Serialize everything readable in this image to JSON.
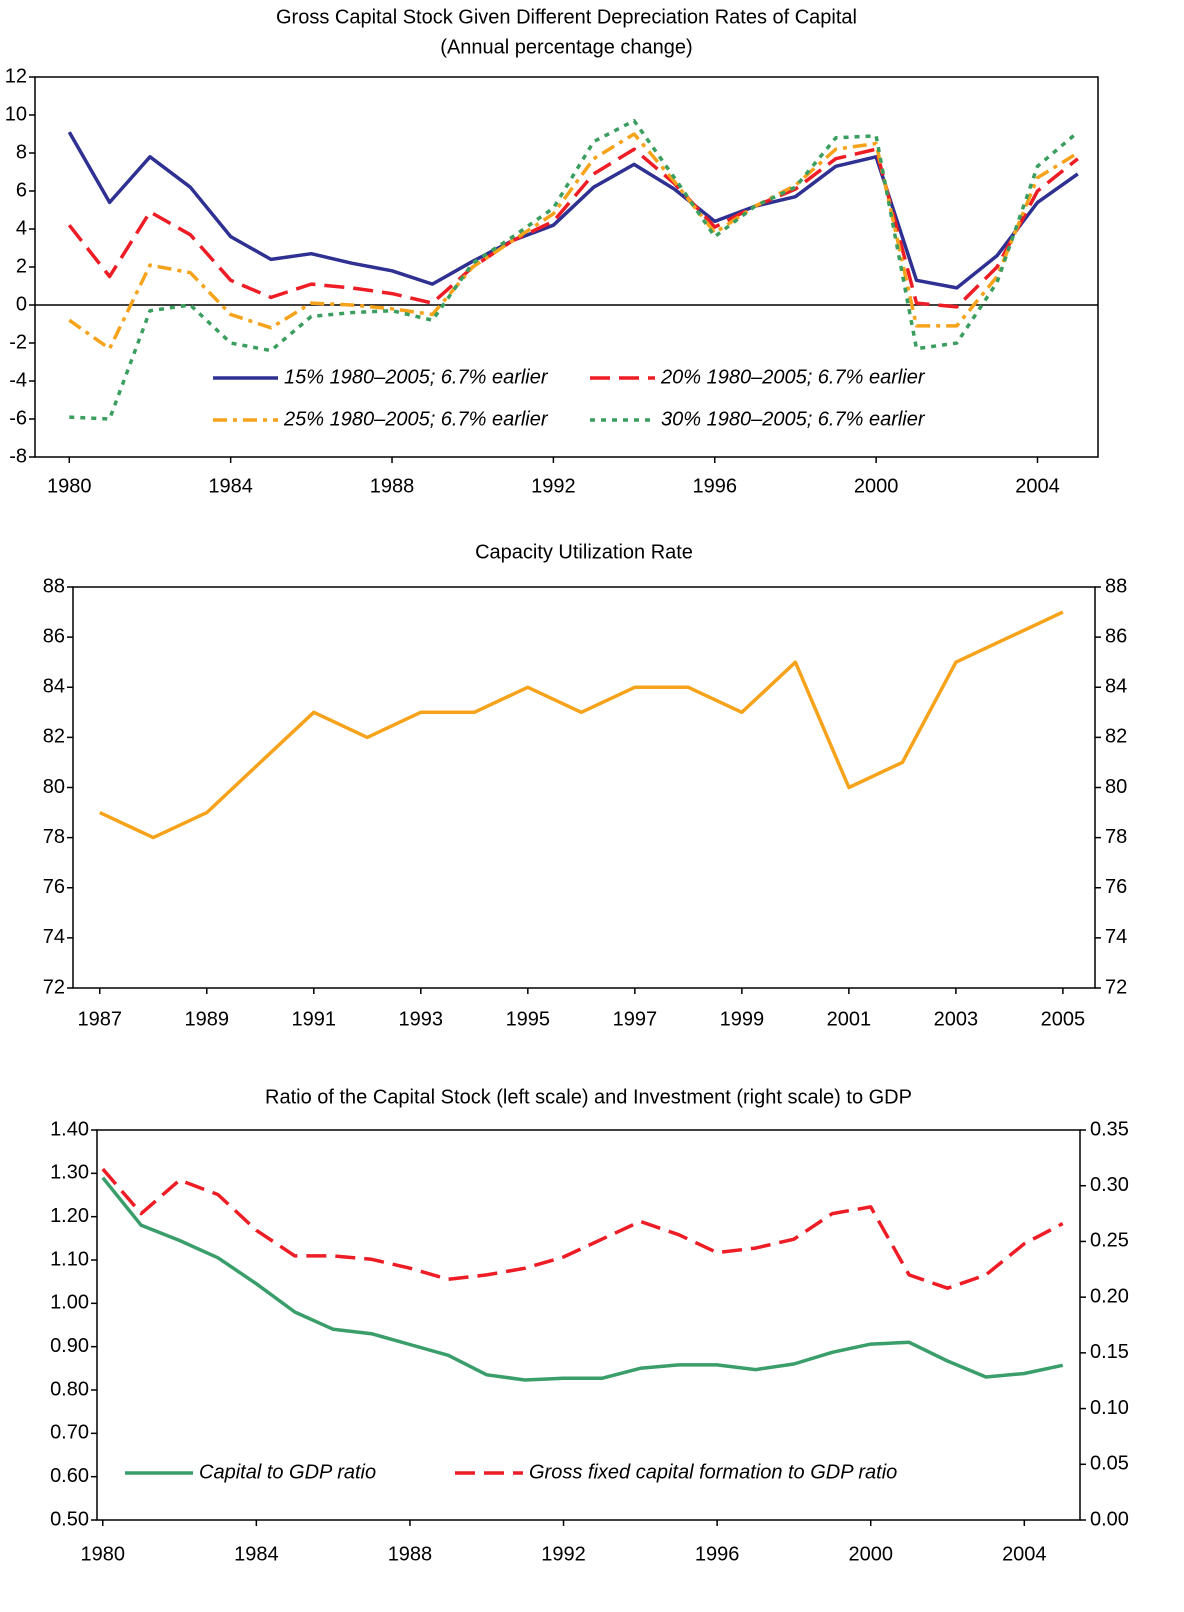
{
  "chart_data": [
    {
      "type": "line",
      "title": "Gross Capital Stock Given Different Depreciation Rates of Capital",
      "subtitle": "(Annual percentage change)",
      "x": [
        1980,
        1981,
        1982,
        1983,
        1984,
        1985,
        1986,
        1987,
        1988,
        1989,
        1990,
        1991,
        1992,
        1993,
        1994,
        1995,
        1996,
        1997,
        1998,
        1999,
        2000,
        2001,
        2002,
        2003,
        2004,
        2005
      ],
      "xlim": [
        1979.15,
        2005.5
      ],
      "xticks": [
        1980,
        1984,
        1988,
        1992,
        1996,
        2000,
        2004
      ],
      "ylim": [
        -8,
        12
      ],
      "yticks": [
        -8,
        -6,
        -4,
        -2,
        0,
        2,
        4,
        6,
        8,
        10,
        12
      ],
      "series": [
        {
          "name": "15% 1980–2005; 6.7% earlier",
          "color": "#2e3192",
          "dash": "solid",
          "values": [
            9.1,
            5.4,
            7.8,
            6.2,
            3.6,
            2.4,
            2.7,
            2.2,
            1.8,
            1.1,
            2.3,
            3.4,
            4.2,
            6.2,
            7.4,
            6.1,
            4.4,
            5.2,
            5.7,
            7.3,
            7.8,
            1.3,
            0.9,
            2.6,
            5.4,
            6.9
          ]
        },
        {
          "name": "20% 1980–2005; 6.7% earlier",
          "color": "#ee1c25",
          "dash": "dashed",
          "values": [
            4.2,
            1.5,
            4.9,
            3.7,
            1.3,
            0.4,
            1.1,
            0.9,
            0.6,
            0.1,
            2.0,
            3.4,
            4.4,
            6.9,
            8.2,
            6.4,
            4.1,
            5.2,
            6.1,
            7.7,
            8.2,
            0.1,
            -0.1,
            2.0,
            6.0,
            7.7
          ]
        },
        {
          "name": "25% 1980–2005; 6.7% earlier",
          "color": "#f7a21b",
          "dash": "dashdot",
          "values": [
            -0.8,
            -2.3,
            2.1,
            1.7,
            -0.5,
            -1.2,
            0.1,
            0.0,
            -0.2,
            -0.5,
            2.0,
            3.4,
            4.8,
            7.7,
            9.0,
            6.5,
            3.8,
            5.2,
            6.3,
            8.2,
            8.5,
            -1.1,
            -1.1,
            1.5,
            6.7,
            8.0
          ]
        },
        {
          "name": "30% 1980–2005; 6.7% earlier",
          "color": "#3a9e5f",
          "dash": "dotted",
          "values": [
            -5.9,
            -6.0,
            -0.3,
            0.0,
            -2.0,
            -2.4,
            -0.6,
            -0.4,
            -0.3,
            -0.8,
            2.2,
            3.6,
            5.1,
            8.6,
            9.7,
            6.7,
            3.6,
            5.2,
            6.2,
            8.8,
            8.9,
            -2.3,
            -2.0,
            1.2,
            7.3,
            9.1
          ]
        }
      ]
    },
    {
      "type": "line",
      "title": "Capacity Utilization Rate",
      "x": [
        1987,
        1988,
        1989,
        1990,
        1991,
        1992,
        1993,
        1994,
        1995,
        1996,
        1997,
        1998,
        1999,
        2000,
        2001,
        2002,
        2003,
        2004,
        2005
      ],
      "xlim": [
        1986.5,
        2005.6
      ],
      "xticks": [
        1987,
        1989,
        1991,
        1993,
        1995,
        1997,
        1999,
        2001,
        2003,
        2005
      ],
      "ylim": [
        72,
        88
      ],
      "yticks": [
        72,
        74,
        76,
        78,
        80,
        82,
        84,
        86,
        88
      ],
      "y2lim": [
        72,
        88
      ],
      "y2ticks": [
        72,
        74,
        76,
        78,
        80,
        82,
        84,
        86,
        88
      ],
      "series": [
        {
          "color": "#f7a21b",
          "dash": "solid",
          "values": [
            79,
            78,
            79,
            81,
            83,
            82,
            83,
            83,
            84,
            83,
            84,
            84,
            83,
            85,
            80,
            81,
            85,
            86,
            87
          ]
        }
      ]
    },
    {
      "type": "line",
      "title": "Ratio of the Capital Stock (left scale) and Investment (right scale) to GDP",
      "x": [
        1980,
        1981,
        1982,
        1983,
        1984,
        1985,
        1986,
        1987,
        1988,
        1989,
        1990,
        1991,
        1992,
        1993,
        1994,
        1995,
        1996,
        1997,
        1998,
        1999,
        2000,
        2001,
        2002,
        2003,
        2004,
        2005
      ],
      "xlim": [
        1979.85,
        2005.45
      ],
      "xticks": [
        1980,
        1984,
        1988,
        1992,
        1996,
        2000,
        2004
      ],
      "ylim": [
        0.5,
        1.4
      ],
      "yticks": [
        {
          "value": 0.5,
          "label": "0.50"
        },
        {
          "value": 0.6,
          "label": "0.60"
        },
        {
          "value": 0.7,
          "label": "0.70"
        },
        {
          "value": 0.8,
          "label": "0.80"
        },
        {
          "value": 0.9,
          "label": "0.90"
        },
        {
          "value": 1.0,
          "label": "1.00"
        },
        {
          "value": 1.1,
          "label": "1.10"
        },
        {
          "value": 1.2,
          "label": "1.20"
        },
        {
          "value": 1.3,
          "label": "1.30"
        },
        {
          "value": 1.4,
          "label": "1.40"
        }
      ],
      "y2lim": [
        0,
        0.35
      ],
      "y2ticks": [
        {
          "value": 0,
          "label": "0.00"
        },
        {
          "value": 0.05,
          "label": "0.05"
        },
        {
          "value": 0.1,
          "label": "0.10"
        },
        {
          "value": 0.15,
          "label": "0.15"
        },
        {
          "value": 0.2,
          "label": "0.20"
        },
        {
          "value": 0.25,
          "label": "0.25"
        },
        {
          "value": 0.3,
          "label": "0.30"
        },
        {
          "value": 0.35,
          "label": "0.35"
        }
      ],
      "series": [
        {
          "name": "Capital to GDP ratio",
          "color": "#3a9e6a",
          "dash": "solid",
          "values": [
            1.29,
            1.18,
            1.145,
            1.105,
            1.045,
            0.98,
            0.94,
            0.93,
            0.905,
            0.88,
            0.835,
            0.823,
            0.827,
            0.827,
            0.85,
            0.858,
            0.858,
            0.847,
            0.86,
            0.887,
            0.906,
            0.91,
            0.867,
            0.83,
            0.838,
            0.857
          ]
        },
        {
          "name": "Gross fixed capital formation to GDP ratio",
          "color": "#ee1c25",
          "dash": "dashed",
          "axis": "y2",
          "values": [
            0.315,
            0.275,
            0.305,
            0.292,
            0.26,
            0.237,
            0.237,
            0.234,
            0.226,
            0.216,
            0.22,
            0.226,
            0.236,
            0.252,
            0.268,
            0.256,
            0.24,
            0.244,
            0.252,
            0.275,
            0.281,
            0.22,
            0.208,
            0.22,
            0.248,
            0.266
          ]
        }
      ]
    }
  ]
}
